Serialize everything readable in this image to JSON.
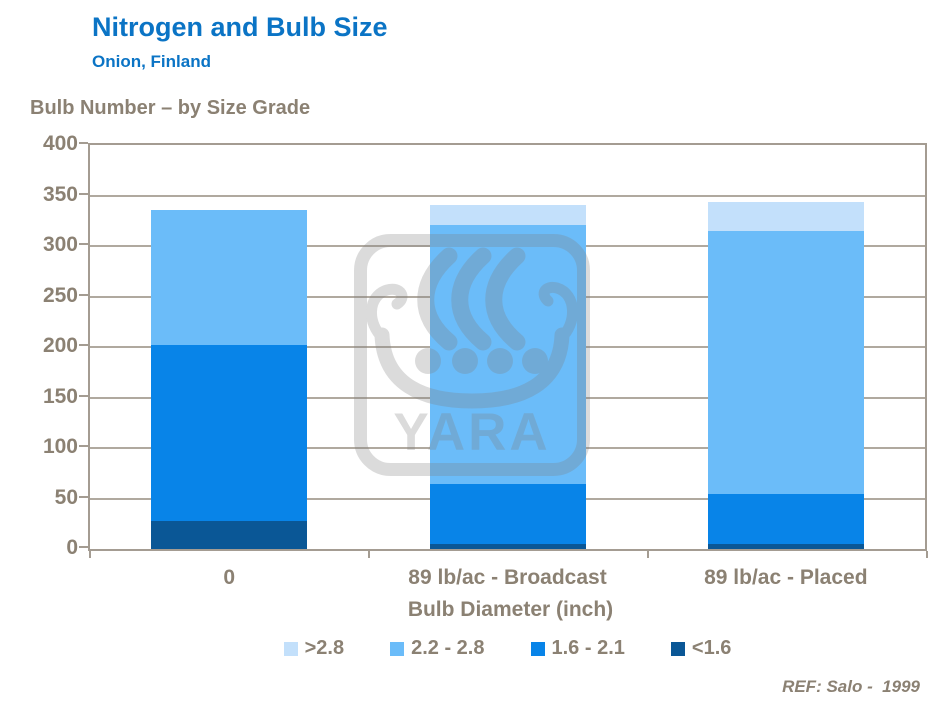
{
  "header": {
    "title": "Nitrogen and Bulb Size",
    "subtitle": "Onion, Finland"
  },
  "section_title": "Bulb Number – by Size Grade",
  "chart_data": {
    "type": "bar",
    "stacked": true,
    "title": "Bulb Number – by Size Grade",
    "categories": [
      "0",
      "89 lb/ac - Broadcast",
      "89 lb/ac - Placed"
    ],
    "series": [
      {
        "name": "<1.6",
        "color": "#0A5796",
        "values": [
          28,
          5,
          5
        ]
      },
      {
        "name": "1.6 - 2.1",
        "color": "#0884E8",
        "values": [
          174,
          59,
          49
        ]
      },
      {
        "name": "2.2 - 2.8",
        "color": "#6BBCF9",
        "values": [
          134,
          257,
          261
        ]
      },
      {
        "name": ">2.8",
        "color": "#C3E0FB",
        "values": [
          0,
          20,
          29
        ]
      }
    ],
    "stack_totals": [
      336,
      341,
      344
    ],
    "xlabel": "Bulb Diameter (inch)",
    "ylabel": "",
    "ylim": [
      0,
      400
    ],
    "yticks": [
      0,
      50,
      100,
      150,
      200,
      250,
      300,
      350,
      400
    ],
    "grid": true,
    "legend_position": "bottom",
    "legend_order": [
      ">2.8",
      "2.2 - 2.8",
      "1.6 - 2.1",
      "<1.6"
    ]
  },
  "watermark": {
    "name": "yara-logo",
    "text": "YARA"
  },
  "footer": {
    "ref": "REF: Salo -  1999"
  },
  "colors": {
    "title_blue": "#0B74C5",
    "label_gray_brown": "#8B8173",
    "grid_tan": "#B0A99F",
    "frame_tan": "#A49C92",
    "watermark_gray": "#7F7F7F"
  }
}
